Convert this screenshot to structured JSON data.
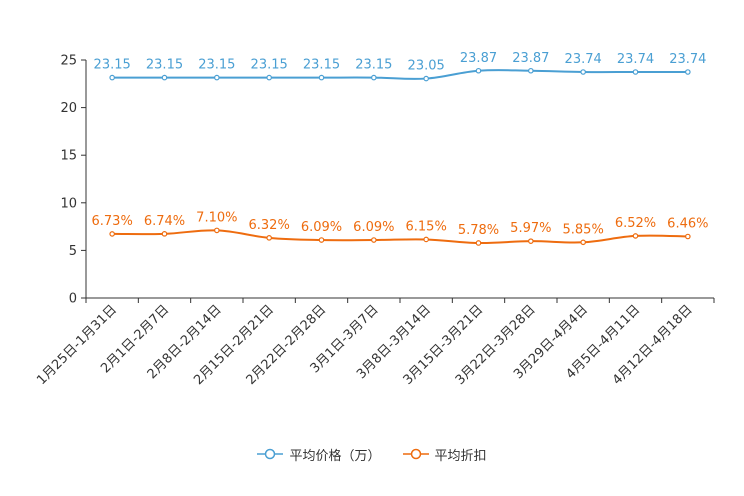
{
  "chart_data": {
    "type": "line",
    "categories": [
      "1月25日-1月31日",
      "2月1日-2月7日",
      "2月8日-2月14日",
      "2月15日-2月21日",
      "2月22日-2月28日",
      "3月1日-3月7日",
      "3月8日-3月14日",
      "3月15日-3月21日",
      "3月22日-3月28日",
      "3月29日-4月4日",
      "4月5日-4月11日",
      "4月12日-4月18日"
    ],
    "ylim": [
      0,
      25
    ],
    "yticks": [
      0,
      5,
      10,
      15,
      20,
      25
    ],
    "series": [
      {
        "name": "平均价格（万）",
        "color": "#4a9fd3",
        "values": [
          23.15,
          23.15,
          23.15,
          23.15,
          23.15,
          23.15,
          23.05,
          23.87,
          23.87,
          23.74,
          23.74,
          23.74
        ],
        "labels": [
          "23.15",
          "23.15",
          "23.15",
          "23.15",
          "23.15",
          "23.15",
          "23.05",
          "23.87",
          "23.87",
          "23.74",
          "23.74",
          "23.74"
        ]
      },
      {
        "name": "平均折扣",
        "color": "#ee6c0f",
        "values": [
          6.73,
          6.74,
          7.1,
          6.32,
          6.09,
          6.09,
          6.15,
          5.78,
          5.97,
          5.85,
          6.52,
          6.46
        ],
        "labels": [
          "6.73%",
          "6.74%",
          "7.10%",
          "6.32%",
          "6.09%",
          "6.09%",
          "6.15%",
          "5.78%",
          "5.97%",
          "5.85%",
          "6.52%",
          "6.46%"
        ]
      }
    ],
    "title": "",
    "xlabel": "",
    "ylabel": "",
    "grid": false,
    "legend": "bottom-center"
  }
}
